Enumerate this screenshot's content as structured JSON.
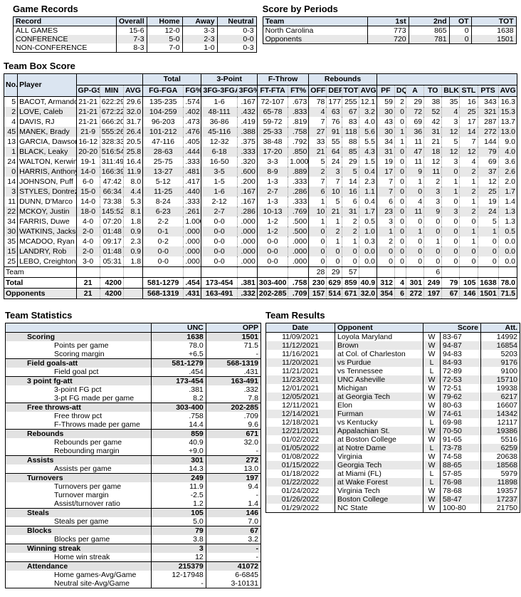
{
  "colors": {
    "header_bg": "#dbe5f1",
    "alt_row_bg": "#e8e8e8",
    "category_row_bg": "#e2e2e2",
    "border": "#000000"
  },
  "game_records": {
    "title": "Game Records",
    "headers": [
      "Record",
      "Overall",
      "Home",
      "Away",
      "Neutral"
    ],
    "rows": [
      [
        "ALL GAMES",
        "15-6",
        "12-0",
        "3-3",
        "0-3"
      ],
      [
        "CONFERENCE",
        "7-3",
        "5-0",
        "2-3",
        "0-0"
      ],
      [
        "NON-CONFERENCE",
        "8-3",
        "7-0",
        "1-0",
        "0-3"
      ]
    ]
  },
  "score_by_periods": {
    "title": "Score by Periods",
    "headers": [
      "Team",
      "1st",
      "2nd",
      "OT",
      "TOT"
    ],
    "rows": [
      [
        "North Carolina",
        "773",
        "865",
        "0",
        "1638"
      ],
      [
        "Opponents",
        "720",
        "781",
        "0",
        "1501"
      ]
    ]
  },
  "box_score": {
    "title": "Team Box Score",
    "header_row1": [
      {
        "label": "No.",
        "rowspan": 2
      },
      {
        "label": "Player",
        "rowspan": 2
      },
      {
        "label": "",
        "colspan": 3
      },
      {
        "label": "Total",
        "colspan": 2
      },
      {
        "label": "3-Point",
        "colspan": 2
      },
      {
        "label": "F-Throw",
        "colspan": 2
      },
      {
        "label": "Rebounds",
        "colspan": 4
      },
      {
        "label": "",
        "colspan": 8
      }
    ],
    "header_row2": [
      "GP-GS",
      "MIN",
      "AVG",
      "FG-FGA",
      "FG%",
      "3FG-3FGA",
      "3FG%",
      "FT-FTA",
      "FT%",
      "OFF",
      "DEF",
      "TOT",
      "AVG",
      "PF",
      "DQ",
      "A",
      "TO",
      "BLK",
      "STL",
      "PTS",
      "AVG"
    ],
    "players": [
      {
        "no": "5",
        "name": "BACOT, Armando",
        "stats": [
          "21-21",
          "622:29",
          "29.6",
          "135-235",
          ".574",
          "1-6",
          ".167",
          "72-107",
          ".673",
          "78",
          "177",
          "255",
          "12.1",
          "59",
          "2",
          "29",
          "38",
          "35",
          "16",
          "343",
          "16.3"
        ]
      },
      {
        "no": "2",
        "name": "LOVE, Caleb",
        "stats": [
          "21-21",
          "672:22",
          "32.0",
          "104-259",
          ".402",
          "48-111",
          ".432",
          "65-78",
          ".833",
          "4",
          "63",
          "67",
          "3.2",
          "30",
          "0",
          "72",
          "52",
          "4",
          "25",
          "321",
          "15.3"
        ]
      },
      {
        "no": "4",
        "name": "DAVIS, RJ",
        "stats": [
          "21-21",
          "666:20",
          "31.7",
          "96-203",
          ".473",
          "36-86",
          ".419",
          "59-72",
          ".819",
          "7",
          "76",
          "83",
          "4.0",
          "43",
          "0",
          "69",
          "42",
          "3",
          "17",
          "287",
          "13.7"
        ]
      },
      {
        "no": "45",
        "name": "MANEK, Brady",
        "stats": [
          "21-9",
          "555:26",
          "26.4",
          "101-212",
          ".476",
          "45-116",
          ".388",
          "25-33",
          ".758",
          "27",
          "91",
          "118",
          "5.6",
          "30",
          "1",
          "36",
          "31",
          "12",
          "14",
          "272",
          "13.0"
        ]
      },
      {
        "no": "13",
        "name": "GARCIA, Dawson",
        "stats": [
          "16-12",
          "328:33",
          "20.5",
          "47-116",
          ".405",
          "12-32",
          ".375",
          "38-48",
          ".792",
          "33",
          "55",
          "88",
          "5.5",
          "34",
          "1",
          "11",
          "21",
          "5",
          "7",
          "144",
          "9.0"
        ]
      },
      {
        "no": "1",
        "name": "BLACK, Leaky",
        "stats": [
          "20-20",
          "516:54",
          "25.8",
          "28-63",
          ".444",
          "6-18",
          ".333",
          "17-20",
          ".850",
          "21",
          "64",
          "85",
          "4.3",
          "31",
          "0",
          "47",
          "18",
          "12",
          "12",
          "79",
          "4.0"
        ]
      },
      {
        "no": "24",
        "name": "WALTON, Kerwin",
        "stats": [
          "19-1",
          "311:49",
          "16.4",
          "25-75",
          ".333",
          "16-50",
          ".320",
          "3-3",
          "1.000",
          "5",
          "24",
          "29",
          "1.5",
          "19",
          "0",
          "11",
          "12",
          "3",
          "4",
          "69",
          "3.6"
        ]
      },
      {
        "no": "0",
        "name": "HARRIS, Anthony",
        "stats": [
          "14-0",
          "166:39",
          "11.9",
          "13-27",
          ".481",
          "3-5",
          ".600",
          "8-9",
          ".889",
          "2",
          "3",
          "5",
          "0.4",
          "17",
          "0",
          "9",
          "11",
          "0",
          "2",
          "37",
          "2.6"
        ]
      },
      {
        "no": "14",
        "name": "JOHNSON, Puff",
        "stats": [
          "6-0",
          "47:42",
          "8.0",
          "5-12",
          ".417",
          "1-5",
          ".200",
          "1-3",
          ".333",
          "7",
          "7",
          "14",
          "2.3",
          "7",
          "0",
          "1",
          "2",
          "1",
          "1",
          "12",
          "2.0"
        ]
      },
      {
        "no": "3",
        "name": "STYLES, Dontrez",
        "stats": [
          "15-0",
          "66:34",
          "4.4",
          "11-25",
          ".440",
          "1-6",
          ".167",
          "2-7",
          ".286",
          "6",
          "10",
          "16",
          "1.1",
          "7",
          "0",
          "0",
          "3",
          "1",
          "2",
          "25",
          "1.7"
        ]
      },
      {
        "no": "11",
        "name": "DUNN, D'Marco",
        "stats": [
          "14-0",
          "73:38",
          "5.3",
          "8-24",
          ".333",
          "2-12",
          ".167",
          "1-3",
          ".333",
          "1",
          "5",
          "6",
          "0.4",
          "6",
          "0",
          "4",
          "3",
          "0",
          "1",
          "19",
          "1.4"
        ]
      },
      {
        "no": "22",
        "name": "MCKOY, Justin",
        "stats": [
          "18-0",
          "145:52",
          "8.1",
          "6-23",
          ".261",
          "2-7",
          ".286",
          "10-13",
          ".769",
          "10",
          "21",
          "31",
          "1.7",
          "23",
          "0",
          "11",
          "9",
          "3",
          "2",
          "24",
          "1.3"
        ]
      },
      {
        "no": "34",
        "name": "FARRIS, Duwe",
        "stats": [
          "4-0",
          "07:20",
          "1.8",
          "2-2",
          "1.000",
          "0-0",
          ".000",
          "1-2",
          ".500",
          "1",
          "1",
          "2",
          "0.5",
          "3",
          "0",
          "0",
          "0",
          "0",
          "0",
          "5",
          "1.3"
        ]
      },
      {
        "no": "30",
        "name": "WATKINS, Jackson",
        "stats": [
          "2-0",
          "01:48",
          "0.9",
          "0-1",
          ".000",
          "0-0",
          ".000",
          "1-2",
          ".500",
          "0",
          "2",
          "2",
          "1.0",
          "1",
          "0",
          "1",
          "0",
          "0",
          "1",
          "1",
          "0.5"
        ]
      },
      {
        "no": "35",
        "name": "MCADOO, Ryan",
        "stats": [
          "4-0",
          "09:17",
          "2.3",
          "0-2",
          ".000",
          "0-0",
          ".000",
          "0-0",
          ".000",
          "0",
          "1",
          "1",
          "0.3",
          "2",
          "0",
          "0",
          "1",
          "0",
          "1",
          "0",
          "0.0"
        ]
      },
      {
        "no": "15",
        "name": "LANDRY, Rob",
        "stats": [
          "2-0",
          "01:48",
          "0.9",
          "0-0",
          ".000",
          "0-0",
          ".000",
          "0-0",
          ".000",
          "0",
          "0",
          "0",
          "0.0",
          "0",
          "0",
          "0",
          "0",
          "0",
          "0",
          "0",
          "0.0"
        ]
      },
      {
        "no": "25",
        "name": "LEBO, Creighton",
        "stats": [
          "3-0",
          "05:31",
          "1.8",
          "0-0",
          ".000",
          "0-0",
          ".000",
          "0-0",
          ".000",
          "0",
          "0",
          "0",
          "0.0",
          "0",
          "0",
          "0",
          "0",
          "0",
          "0",
          "0",
          "0.0"
        ]
      }
    ],
    "team_row": {
      "label": "Team",
      "stats": [
        "",
        "",
        "",
        "",
        "",
        "",
        "",
        "",
        "",
        "28",
        "29",
        "57",
        "",
        "",
        "",
        "",
        "6",
        "",
        "",
        "",
        ""
      ]
    },
    "total_row": {
      "label": "Total",
      "stats": [
        "21",
        "4200",
        "",
        "581-1279",
        ".454",
        "173-454",
        ".381",
        "303-400",
        ".758",
        "230",
        "629",
        "859",
        "40.9",
        "312",
        "4",
        "301",
        "249",
        "79",
        "105",
        "1638",
        "78.0"
      ]
    },
    "opponents_row": {
      "label": "Opponents",
      "stats": [
        "21",
        "4200",
        "",
        "568-1319",
        ".431",
        "163-491",
        ".332",
        "202-285",
        ".709",
        "157",
        "514",
        "671",
        "32.0",
        "354",
        "6",
        "272",
        "197",
        "67",
        "146",
        "1501",
        "71.5"
      ]
    }
  },
  "team_statistics": {
    "title": "Team Statistics",
    "headers": [
      "",
      "UNC",
      "OPP"
    ],
    "rows": [
      {
        "label": "Scoring",
        "unc": "1638",
        "opp": "1501",
        "bold": true
      },
      {
        "label": "Points per game",
        "unc": "78.0",
        "opp": "71.5"
      },
      {
        "label": "Scoring margin",
        "unc": "+6.5",
        "opp": "-"
      },
      {
        "label": "Field goals-att",
        "unc": "581-1279",
        "opp": "568-1319",
        "bold": true
      },
      {
        "label": "Field goal pct",
        "unc": ".454",
        "opp": ".431"
      },
      {
        "label": "3 point fg-att",
        "unc": "173-454",
        "opp": "163-491",
        "bold": true
      },
      {
        "label": "3-point FG pct",
        "unc": ".381",
        "opp": ".332"
      },
      {
        "label": "3-pt FG made per game",
        "unc": "8.2",
        "opp": "7.8"
      },
      {
        "label": "Free throws-att",
        "unc": "303-400",
        "opp": "202-285",
        "bold": true
      },
      {
        "label": "Free throw pct",
        "unc": ".758",
        "opp": ".709"
      },
      {
        "label": "F-Throws made per game",
        "unc": "14.4",
        "opp": "9.6"
      },
      {
        "label": "Rebounds",
        "unc": "859",
        "opp": "671",
        "bold": true
      },
      {
        "label": "Rebounds per game",
        "unc": "40.9",
        "opp": "32.0"
      },
      {
        "label": "Rebounding margin",
        "unc": "+9.0",
        "opp": "-"
      },
      {
        "label": "Assists",
        "unc": "301",
        "opp": "272",
        "bold": true
      },
      {
        "label": "Assists per game",
        "unc": "14.3",
        "opp": "13.0"
      },
      {
        "label": "Turnovers",
        "unc": "249",
        "opp": "197",
        "bold": true
      },
      {
        "label": "Turnovers per game",
        "unc": "11.9",
        "opp": "9.4"
      },
      {
        "label": "Turnover margin",
        "unc": "-2.5",
        "opp": "-"
      },
      {
        "label": "Assist/turnover ratio",
        "unc": "1.2",
        "opp": "1.4"
      },
      {
        "label": "Steals",
        "unc": "105",
        "opp": "146",
        "bold": true
      },
      {
        "label": "Steals per game",
        "unc": "5.0",
        "opp": "7.0"
      },
      {
        "label": "Blocks",
        "unc": "79",
        "opp": "67",
        "bold": true
      },
      {
        "label": "Blocks per game",
        "unc": "3.8",
        "opp": "3.2"
      },
      {
        "label": "Winning streak",
        "unc": "3",
        "opp": "-",
        "bold": true
      },
      {
        "label": "Home win streak",
        "unc": "12",
        "opp": "-"
      },
      {
        "label": "Attendance",
        "unc": "215379",
        "opp": "41072",
        "bold": true
      },
      {
        "label": "Home games-Avg/Game",
        "unc": "12-17948",
        "opp": "6-6845"
      },
      {
        "label": "Neutral site-Avg/Game",
        "unc": "-",
        "opp": "3-10131"
      }
    ]
  },
  "team_results": {
    "title": "Team Results",
    "headers": [
      "Date",
      "Opponent",
      "Score",
      "Att."
    ],
    "rows": [
      {
        "date": "11/09/2021",
        "opponent": "Loyola Maryland",
        "wl": "W",
        "score": "83-67",
        "att": "14992"
      },
      {
        "date": "11/12/2021",
        "opponent": "Brown",
        "wl": "W",
        "score": "94-87",
        "att": "16854"
      },
      {
        "date": "11/16/2021",
        "opponent": "at Col. of Charleston",
        "wl": "W",
        "score": "94-83",
        "att": "5203"
      },
      {
        "date": "11/20/2021",
        "opponent": "vs Purdue",
        "wl": "L",
        "score": "84-93",
        "att": "9176"
      },
      {
        "date": "11/21/2021",
        "opponent": "vs Tennessee",
        "wl": "L",
        "score": "72-89",
        "att": "9100"
      },
      {
        "date": "11/23/2021",
        "opponent": "UNC Asheville",
        "wl": "W",
        "score": "72-53",
        "att": "15710"
      },
      {
        "date": "12/01/2021",
        "opponent": "Michigan",
        "wl": "W",
        "score": "72-51",
        "att": "19938"
      },
      {
        "date": "12/05/2021",
        "opponent": "at Georgia Tech",
        "wl": "W",
        "score": "79-62",
        "att": "6217"
      },
      {
        "date": "12/11/2021",
        "opponent": "Elon",
        "wl": "W",
        "score": "80-63",
        "att": "16607"
      },
      {
        "date": "12/14/2021",
        "opponent": "Furman",
        "wl": "W",
        "score": "74-61",
        "att": "14342"
      },
      {
        "date": "12/18/2021",
        "opponent": "vs Kentucky",
        "wl": "L",
        "score": "69-98",
        "att": "12117"
      },
      {
        "date": "12/21/2021",
        "opponent": "Appalachian St.",
        "wl": "W",
        "score": "70-50",
        "att": "19386"
      },
      {
        "date": "01/02/2022",
        "opponent": "at Boston College",
        "wl": "W",
        "score": "91-65",
        "att": "5516"
      },
      {
        "date": "01/05/2022",
        "opponent": "at Notre Dame",
        "wl": "L",
        "score": "73-78",
        "att": "6259"
      },
      {
        "date": "01/08/2022",
        "opponent": "Virginia",
        "wl": "W",
        "score": "74-58",
        "att": "20638"
      },
      {
        "date": "01/15/2022",
        "opponent": "Georgia Tech",
        "wl": "W",
        "score": "88-65",
        "att": "18568"
      },
      {
        "date": "01/18/2022",
        "opponent": "at Miami (FL)",
        "wl": "L",
        "score": "57-85",
        "att": "5979"
      },
      {
        "date": "01/22/2022",
        "opponent": "at Wake Forest",
        "wl": "L",
        "score": "76-98",
        "att": "11898"
      },
      {
        "date": "01/24/2022",
        "opponent": "Virginia Tech",
        "wl": "W",
        "score": "78-68",
        "att": "19357"
      },
      {
        "date": "01/26/2022",
        "opponent": "Boston College",
        "wl": "W",
        "score": "58-47",
        "att": "17237"
      },
      {
        "date": "01/29/2022",
        "opponent": "NC State",
        "wl": "W",
        "score": "100-80",
        "att": "21750"
      }
    ]
  }
}
